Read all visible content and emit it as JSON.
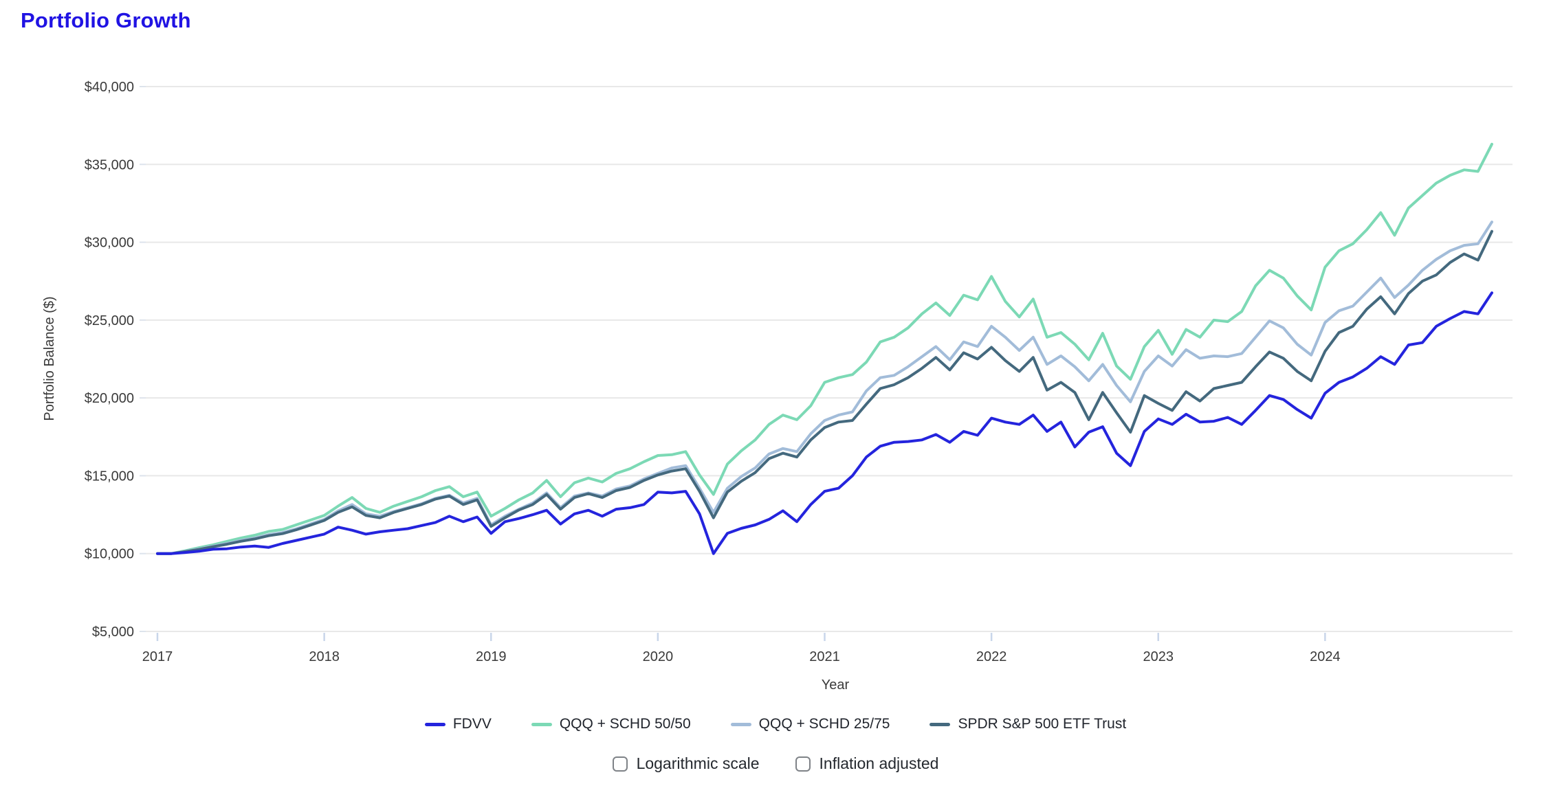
{
  "title": "Portfolio Growth",
  "colors": {
    "title": "#2013e3",
    "grid": "#e8e8e8",
    "axis_text": "#3a3a3a",
    "x_tick_mark": "#c9d6ea",
    "y_tick_mark": "#dde3ec",
    "background": "#ffffff"
  },
  "controls": {
    "logarithmic_label": "Logarithmic scale",
    "logarithmic_checked": false,
    "inflation_label": "Inflation adjusted",
    "inflation_checked": false
  },
  "chart_data": {
    "type": "line",
    "title": "Portfolio Growth",
    "xlabel": "Year",
    "ylabel": "Portfolio Balance ($)",
    "x_unit": "monthly",
    "x_start": "2016-12",
    "x_end": "2024-12",
    "x_tick_labels": [
      "2017",
      "2018",
      "2019",
      "2020",
      "2021",
      "2022",
      "2023",
      "2024"
    ],
    "y_ticks": [
      40000,
      35000,
      30000,
      25000,
      20000,
      15000,
      10000,
      5000
    ],
    "y_tick_labels": [
      "$40,000",
      "$35,000",
      "$30,000",
      "$25,000",
      "$20,000",
      "$15,000",
      "$10,000",
      "$5,000"
    ],
    "ylim": [
      5000,
      40000
    ],
    "grid": true,
    "legend_position": "bottom",
    "series": [
      {
        "name": "FDVV",
        "color": "#2424dd",
        "values": [
          10000,
          10000,
          10070,
          10150,
          10280,
          10310,
          10420,
          10480,
          10400,
          10650,
          10850,
          11050,
          11250,
          11700,
          11500,
          11250,
          11400,
          11500,
          11600,
          11800,
          12000,
          12400,
          12050,
          12350,
          11300,
          12050,
          12250,
          12500,
          12780,
          11900,
          12550,
          12780,
          12400,
          12850,
          12950,
          13150,
          13950,
          13900,
          14000,
          12550,
          10000,
          11300,
          11620,
          11840,
          12200,
          12750,
          12050,
          13150,
          14000,
          14200,
          15000,
          16200,
          16900,
          17150,
          17200,
          17300,
          17650,
          17150,
          17850,
          17600,
          18700,
          18450,
          18300,
          18900,
          17850,
          18450,
          16850,
          17800,
          18150,
          16450,
          15650,
          17850,
          18650,
          18300,
          18950,
          18450,
          18500,
          18750,
          18300,
          19200,
          20150,
          19900,
          19250,
          18700,
          20300,
          21000,
          21350,
          21900,
          22650,
          22150,
          23400,
          23550,
          24600,
          25100,
          25550,
          25400,
          26750
        ]
      },
      {
        "name": "QQQ + SCHD 50/50",
        "color": "#7cd9b5",
        "values": [
          10000,
          10000,
          10180,
          10380,
          10560,
          10780,
          11000,
          11180,
          11420,
          11550,
          11850,
          12150,
          12450,
          13050,
          13600,
          12900,
          12650,
          13050,
          13350,
          13650,
          14050,
          14300,
          13650,
          13950,
          12400,
          12900,
          13450,
          13900,
          14700,
          13650,
          14550,
          14850,
          14600,
          15150,
          15450,
          15900,
          16300,
          16350,
          16550,
          15050,
          13800,
          15750,
          16600,
          17300,
          18300,
          18900,
          18600,
          19500,
          21000,
          21300,
          21500,
          22300,
          23600,
          23900,
          24500,
          25400,
          26100,
          25300,
          26600,
          26300,
          27800,
          26200,
          25200,
          26350,
          23900,
          24200,
          23450,
          22450,
          24150,
          22050,
          21200,
          23300,
          24340,
          22800,
          24400,
          23900,
          25000,
          24900,
          25550,
          27200,
          28200,
          27700,
          26550,
          25650,
          28400,
          29450,
          29900,
          30800,
          31900,
          30450,
          32200,
          33000,
          33800,
          34300,
          34650,
          34550,
          36300
        ]
      },
      {
        "name": "QQQ + SCHD 25/75",
        "color": "#a2bcd9",
        "values": [
          10000,
          10000,
          10150,
          10300,
          10480,
          10650,
          10850,
          11000,
          11220,
          11350,
          11600,
          11900,
          12200,
          12750,
          13150,
          12550,
          12400,
          12700,
          12950,
          13200,
          13550,
          13750,
          13250,
          13550,
          11850,
          12400,
          12850,
          13250,
          13900,
          12950,
          13700,
          13900,
          13700,
          14150,
          14350,
          14800,
          15150,
          15500,
          15650,
          14200,
          12650,
          14200,
          14950,
          15500,
          16400,
          16750,
          16550,
          17700,
          18550,
          18900,
          19100,
          20450,
          21300,
          21450,
          22000,
          22650,
          23300,
          22450,
          23600,
          23300,
          24600,
          23900,
          23050,
          23900,
          22150,
          22700,
          22000,
          21100,
          22150,
          20800,
          19750,
          21700,
          22700,
          22050,
          23100,
          22550,
          22700,
          22650,
          22850,
          23900,
          24950,
          24500,
          23450,
          22750,
          24850,
          25600,
          25900,
          26800,
          27700,
          26450,
          27250,
          28200,
          28900,
          29450,
          29800,
          29900,
          31300
        ]
      },
      {
        "name": "SPDR S&P 500 ETF Trust",
        "color": "#44697e",
        "values": [
          10000,
          10000,
          10130,
          10270,
          10440,
          10600,
          10790,
          10940,
          11150,
          11280,
          11530,
          11830,
          12130,
          12650,
          13000,
          12450,
          12300,
          12650,
          12900,
          13150,
          13500,
          13700,
          13150,
          13450,
          11750,
          12300,
          12800,
          13150,
          13800,
          12850,
          13600,
          13850,
          13600,
          14050,
          14250,
          14700,
          15050,
          15300,
          15450,
          14000,
          12300,
          13950,
          14650,
          15200,
          16100,
          16450,
          16200,
          17300,
          18100,
          18450,
          18550,
          19600,
          20600,
          20850,
          21300,
          21900,
          22600,
          21800,
          22900,
          22500,
          23250,
          22400,
          21700,
          22600,
          20500,
          21000,
          20350,
          18600,
          20350,
          19050,
          17800,
          20150,
          19650,
          19200,
          20400,
          19800,
          20600,
          20800,
          21000,
          22000,
          22950,
          22550,
          21700,
          21100,
          23000,
          24200,
          24600,
          25700,
          26500,
          25400,
          26700,
          27500,
          27900,
          28700,
          29250,
          28850,
          30700
        ]
      }
    ]
  }
}
